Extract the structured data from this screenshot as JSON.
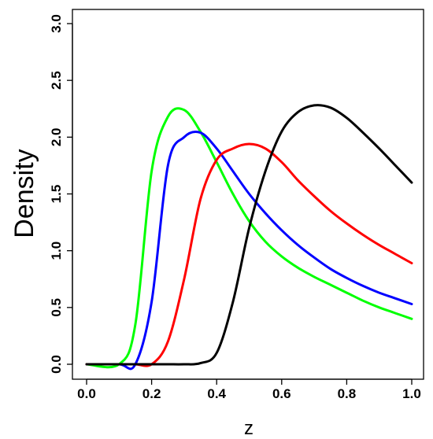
{
  "chart_data": {
    "type": "line",
    "title": "",
    "xlabel": "z",
    "ylabel": "Density",
    "xlim": [
      0.0,
      1.0
    ],
    "ylim": [
      0.0,
      3.0
    ],
    "xticks": [
      "0.0",
      "0.2",
      "0.4",
      "0.6",
      "0.8",
      "1.0"
    ],
    "yticks": [
      "0.0",
      "0.5",
      "1.0",
      "1.5",
      "2.0",
      "2.5",
      "3.0"
    ],
    "grid": false,
    "legend": "none",
    "x": [
      0.0,
      0.1,
      0.15,
      0.2,
      0.25,
      0.3,
      0.35,
      0.4,
      0.45,
      0.5,
      0.55,
      0.6,
      0.65,
      0.7,
      0.75,
      0.8,
      0.85,
      0.9,
      0.95,
      1.0
    ],
    "series": [
      {
        "color": "#00ff00",
        "values": [
          0.0,
          0.0,
          0.35,
          1.7,
          2.18,
          2.24,
          2.05,
          1.78,
          1.5,
          1.26,
          1.08,
          0.95,
          0.85,
          0.77,
          0.7,
          0.63,
          0.56,
          0.5,
          0.45,
          0.4
        ]
      },
      {
        "color": "#0000ff",
        "values": [
          0.0,
          0.0,
          0.0,
          0.55,
          1.75,
          2.0,
          2.04,
          1.9,
          1.7,
          1.5,
          1.33,
          1.18,
          1.05,
          0.94,
          0.84,
          0.76,
          0.69,
          0.63,
          0.58,
          0.53
        ]
      },
      {
        "color": "#ff0000",
        "values": [
          0.0,
          0.0,
          0.0,
          0.0,
          0.2,
          0.75,
          1.45,
          1.8,
          1.9,
          1.94,
          1.9,
          1.78,
          1.62,
          1.48,
          1.35,
          1.24,
          1.14,
          1.05,
          0.97,
          0.89
        ]
      },
      {
        "color": "#000000",
        "values": [
          0.0,
          0.0,
          0.0,
          0.0,
          0.0,
          0.0,
          0.01,
          0.1,
          0.55,
          1.2,
          1.7,
          2.05,
          2.22,
          2.28,
          2.26,
          2.17,
          2.04,
          1.9,
          1.75,
          1.6
        ]
      }
    ]
  }
}
